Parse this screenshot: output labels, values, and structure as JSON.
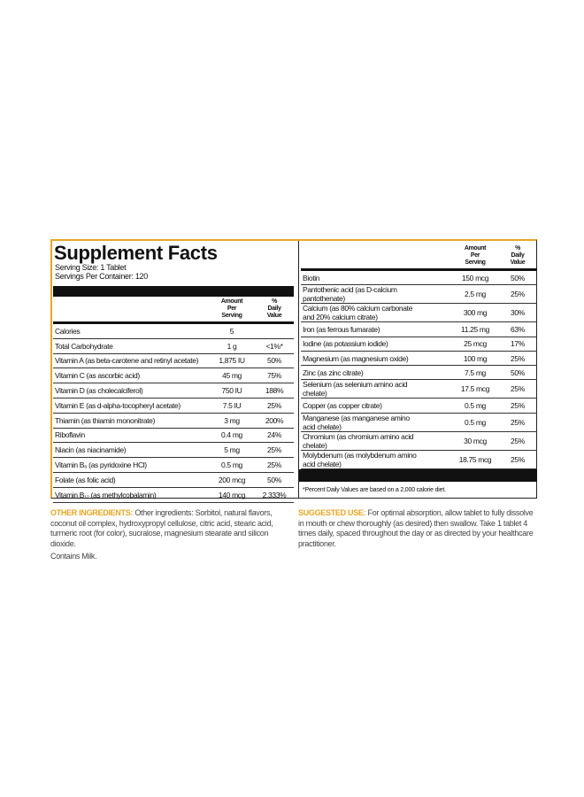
{
  "panel_left": {
    "title": "Supplement Facts",
    "serving_size": "Serving Size: 1 Tablet",
    "servings_per_container": "Servings Per Container: 120",
    "columns": [
      "Amount Per Serving",
      "% Daily Value"
    ],
    "rows": [
      [
        "Calories",
        "5"
      ],
      [
        "Total Carbohydrate",
        "1 g",
        "<1%*"
      ],
      [
        "Vitamin A (as beta-carotene and retinyl acetate)",
        "1,875 IU",
        "50%"
      ],
      [
        "Vitamin C (as ascorbic acid)",
        "45 mg",
        "75%"
      ],
      [
        "Vitamin D (as cholecalciferol)",
        "750 IU",
        "188%"
      ],
      [
        "Vitamin E (as d-alpha-tocopheryl acetate)",
        "7.5 IU",
        "25%"
      ],
      [
        "Thiamin (as thiamin mononitrate)",
        "3 mg",
        "200%"
      ],
      [
        "Riboflavin",
        "0.4 mg",
        "24%"
      ],
      [
        "Niacin (as niacinamide)",
        "5 mg",
        "25%"
      ],
      [
        "Vitamin B₆ (as pyridoxine HCl)",
        "0.5 mg",
        "25%"
      ],
      [
        "Folate (as folic acid)",
        "200 mcg",
        "50%"
      ],
      [
        "Vitamin B₁₂ (as methylcobalamin)",
        "140 mcg",
        "2,333%"
      ]
    ]
  },
  "panel_right": {
    "columns": [
      "Amount Per Serving",
      "% Daily Value"
    ],
    "rows": [
      [
        "Biotin",
        "150 mcg",
        "50%"
      ],
      [
        "Pantothenic acid (as D-calcium pantothenate)",
        "2.5 mg",
        "25%"
      ],
      [
        "Calcium (as 80% calcium carbonate and 20% calcium citrate)",
        "300 mg",
        "30%"
      ],
      [
        "Iron (as ferrous fumarate)",
        "11.25 mg",
        "63%"
      ],
      [
        "Iodine (as potassium iodide)",
        "25 mcg",
        "17%"
      ],
      [
        "Magnesium (as magnesium oxide)",
        "100 mg",
        "25%"
      ],
      [
        "Zinc (as zinc citrate)",
        "7.5 mg",
        "50%"
      ],
      [
        "Selenium (as selenium amino acid chelate)",
        "17.5 mcg",
        "25%"
      ],
      [
        "Copper (as copper citrate)",
        "0.5 mg",
        "25%"
      ],
      [
        "Manganese (as manganese amino acid chelate)",
        "0.5 mg",
        "25%"
      ],
      [
        "Chromium (as chromium amino acid chelate)",
        "30 mcg",
        "25%"
      ],
      [
        "Molybdenum (as molybdenum amino acid chelate)",
        "18.75 mcg",
        "25%"
      ]
    ],
    "footnote": "*Percent Daily Values are based on a 2,000 calorie diet."
  },
  "other_ingredients": {
    "label": "OTHER INGREDIENTS:",
    "text": "Other ingredients: Sorbitol, natural flavors, coconut oil complex, hydroxypropyl cellulose, citric acid, stearic acid, turmeric root (for color), sucralose, magnesium stearate and silicon dioxide.",
    "note": "Contains Milk."
  },
  "suggested_use": {
    "label": "SUGGESTED USE:",
    "text": "For optimal absorption, allow tablet to fully dissolve in mouth or chew thoroughly (as desired) then swallow. Take 1 tablet 4 times daily, spaced throughout the day or as directed by your healthcare practitioner."
  }
}
